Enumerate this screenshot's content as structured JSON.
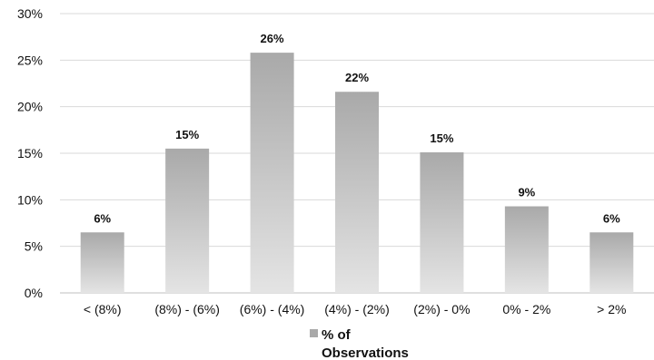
{
  "chart_data": {
    "type": "bar",
    "categories": [
      "< (8%)",
      "(8%) - (6%)",
      "(6%) - (4%)",
      "(4%) - (2%)",
      "(2%) - 0%",
      "0% - 2%",
      "> 2%"
    ],
    "series": [
      {
        "name": "% of Observations",
        "legend_lines": [
          "% of",
          "Observations"
        ],
        "values": [
          6.5,
          15.5,
          25.8,
          21.6,
          15.1,
          9.3,
          6.5
        ],
        "data_labels": [
          "6%",
          "15%",
          "26%",
          "22%",
          "15%",
          "9%",
          "6%"
        ]
      }
    ],
    "title": "",
    "xlabel": "",
    "ylabel": "",
    "ylim": [
      0,
      30
    ],
    "y_ticks": [
      "0%",
      "5%",
      "10%",
      "15%",
      "20%",
      "25%",
      "30%"
    ],
    "grid": true,
    "legend_position": "bottom",
    "colors": {
      "bar_top": "#a9a9a9",
      "bar_bottom": "#e4e4e4",
      "grid": "#d9d9d9",
      "axis": "#bfbfbf"
    }
  }
}
